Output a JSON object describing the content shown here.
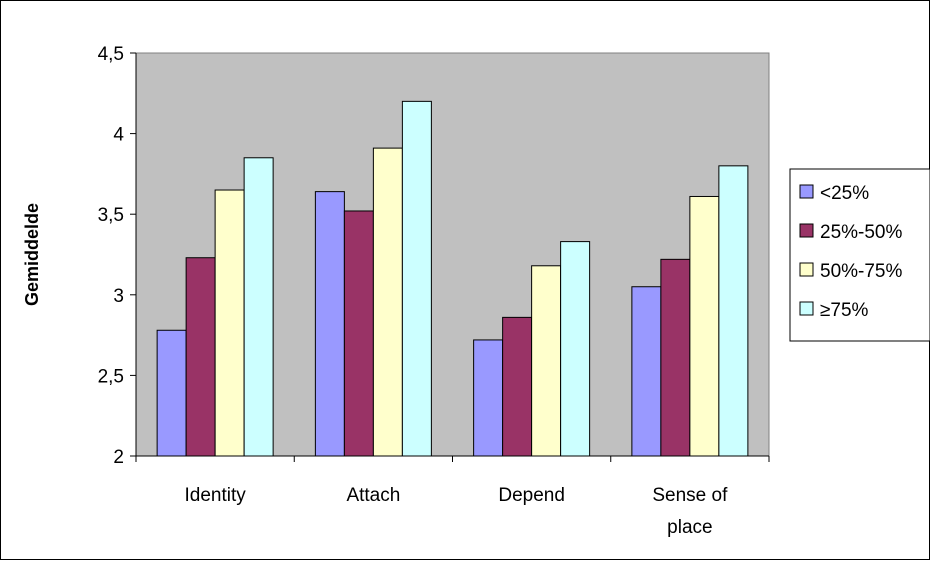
{
  "chart_data": {
    "type": "bar",
    "title": "",
    "xlabel": "",
    "ylabel": "Gemiddelde",
    "ylim": [
      2,
      4.5
    ],
    "ytick_step": 0.5,
    "ytick_labels": [
      "2",
      "2,5",
      "3",
      "3,5",
      "4",
      "4,5"
    ],
    "categories": [
      [
        "Identity"
      ],
      [
        "Attach"
      ],
      [
        "Depend"
      ],
      [
        "Sense of",
        "place"
      ]
    ],
    "series": [
      {
        "name": "<25%",
        "color": "#9999ff",
        "values": [
          2.78,
          3.64,
          2.72,
          3.05
        ]
      },
      {
        "name": "25%-50%",
        "color": "#993366",
        "values": [
          3.23,
          3.52,
          2.86,
          3.22
        ]
      },
      {
        "name": "50%-75%",
        "color": "#ffffcc",
        "values": [
          3.65,
          3.91,
          3.18,
          3.61
        ]
      },
      {
        "name": "≥75%",
        "color": "#ccffff",
        "values": [
          3.85,
          4.2,
          3.33,
          3.8
        ]
      }
    ],
    "plot_background": "#c0c0c0",
    "grid": false,
    "legend_position": "right"
  }
}
